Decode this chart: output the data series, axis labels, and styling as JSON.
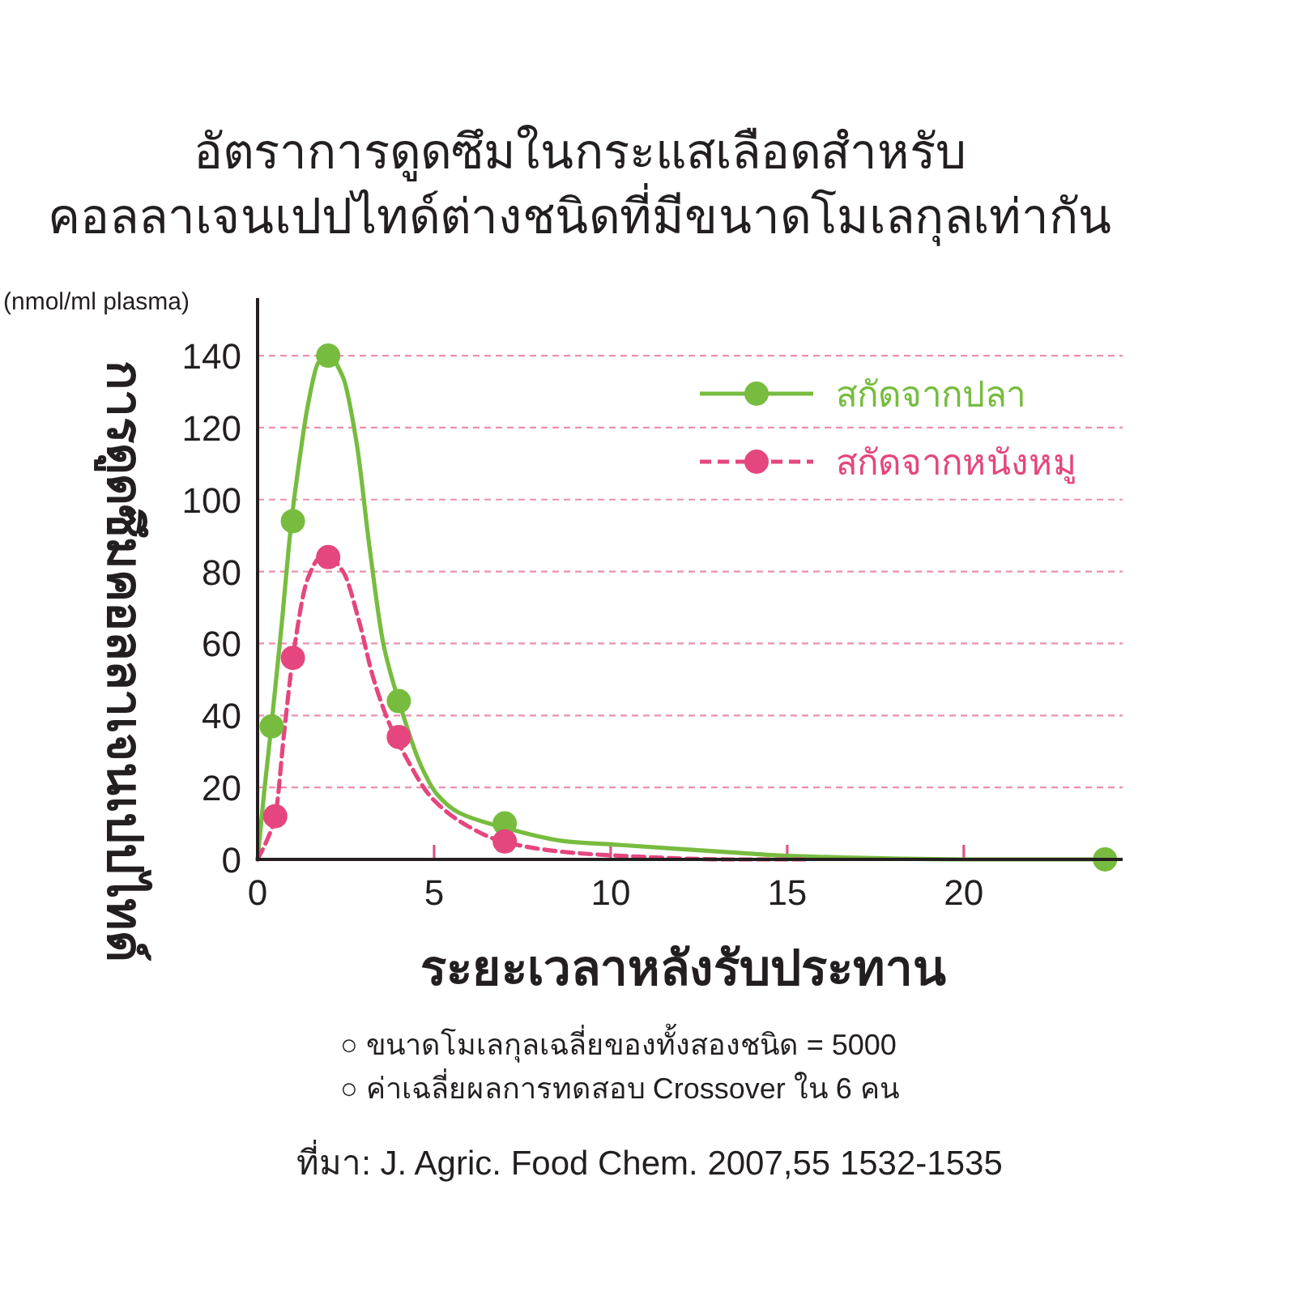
{
  "chart_data": {
    "type": "line",
    "title": "อัตราการดูดซึมในกระแสเลือดสำหรับ\nคอลลาเจนเปปไทด์ต่างชนิดที่มีขนาดโมเลกุลเท่ากัน",
    "xlabel": "ระยะเวลาหลังรับประทาน",
    "ylabel": "การดูดซึมคอลลาเจนเปปไทด์",
    "annotations": [
      "(nmol/ml plasma)",
      "○ ขนาดโมเลกุลเฉลี่ยของทั้งสองชนิด = 5000",
      "○ ค่าเฉลี่ยผลการทดสอบ Crossover ใน 6 คน",
      "ที่มา: J. Agric. Food Chem. 2007,55 1532-1535"
    ],
    "xlim": [
      0,
      24.5
    ],
    "xticks": [
      0,
      5,
      10,
      15,
      20
    ],
    "ylim": [
      0,
      156
    ],
    "yticks": [
      0,
      20,
      40,
      60,
      80,
      100,
      120,
      140
    ],
    "grid": "y",
    "legend": "top right",
    "series": [
      {
        "name": "สกัดจากปลา",
        "color": "#77bc3f",
        "line_style": "solid",
        "marker": "none",
        "x": [
          0,
          0.2,
          0.4,
          0.66,
          0.96,
          1.2,
          1.42,
          1.72,
          2.0,
          2.42,
          2.8,
          3.18,
          3.56,
          4.0,
          4.63,
          5.09,
          5.7,
          6.93,
          8.76,
          10.3,
          13.35,
          15,
          20,
          24
        ],
        "values": [
          0,
          20,
          38,
          63,
          94,
          112,
          126,
          138,
          140,
          134,
          116,
          86,
          60,
          44,
          26,
          18,
          13,
          9,
          5,
          4,
          2,
          1,
          0,
          0
        ]
      },
      {
        "name": "สกัดจากหนังหมู",
        "color": "#e5467f",
        "line_style": "dashed",
        "marker": "none",
        "x": [
          0,
          0.25,
          0.5,
          0.75,
          1.0,
          1.42,
          1.8,
          2.0,
          2.42,
          2.88,
          3.26,
          3.72,
          4.17,
          4.94,
          6.0,
          6.93,
          8.76,
          10.3,
          13.35,
          15.6
        ],
        "values": [
          0,
          5,
          12,
          35,
          56,
          78,
          84,
          84,
          80,
          66,
          51,
          38,
          29,
          17,
          9,
          5,
          2,
          1,
          0,
          0
        ]
      },
      {
        "type": "scatter",
        "color": "#77bc3f",
        "marker": "circle",
        "x": [
          0.4,
          1,
          2,
          4,
          7,
          24
        ],
        "values": [
          37,
          94,
          140,
          44,
          10,
          0
        ]
      },
      {
        "type": "scatter",
        "color": "#e5467f",
        "marker": "circle",
        "x": [
          0.5,
          1,
          2,
          4,
          7
        ],
        "values": [
          12,
          56,
          84,
          34,
          5
        ]
      }
    ]
  }
}
